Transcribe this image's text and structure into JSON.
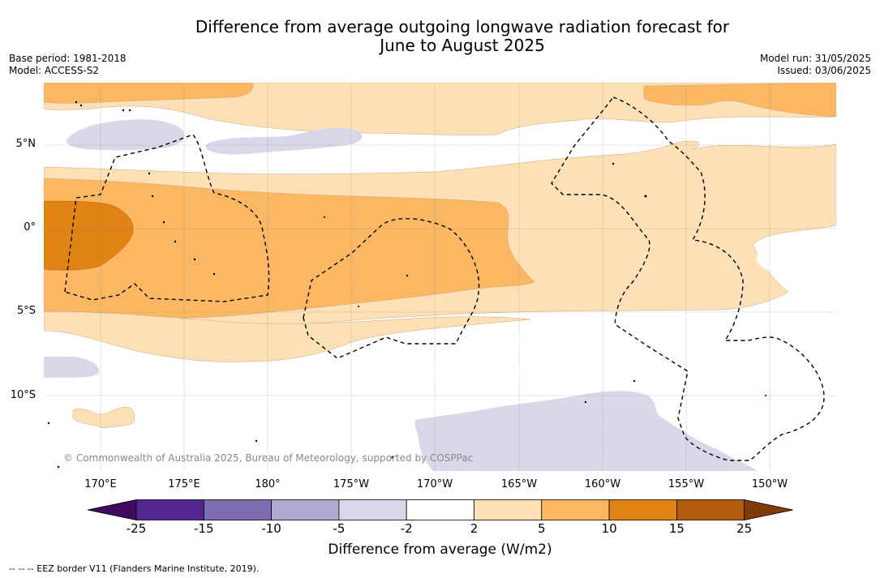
{
  "title": {
    "line1": "Difference from average outgoing longwave radiation forecast for",
    "line2": "June to August 2025"
  },
  "meta": {
    "base_period": "Base period: 1981-2018",
    "model": "Model: ACCESS-S2",
    "model_run": "Model run: 31/05/2025",
    "issued": "Issued: 03/06/2025"
  },
  "map": {
    "copyright": "© Commonwealth of Australia 2025, Bureau of Meteorology, supported by COSPPac",
    "lat_labels": [
      "5°N",
      "0°",
      "5°S",
      "10°S"
    ],
    "lon_labels": [
      "170°E",
      "175°E",
      "180°",
      "175°W",
      "170°W",
      "165°W",
      "160°W",
      "155°W",
      "150°W"
    ]
  },
  "colorbar": {
    "ticks": [
      "-25",
      "-15",
      "-10",
      "-5",
      "-2",
      "2",
      "5",
      "10",
      "15",
      "25"
    ],
    "colors": [
      "#3f0a5e",
      "#54278f",
      "#7d6db1",
      "#b0aad3",
      "#d8d8ea",
      "#ffffff",
      "#fde0b5",
      "#fbb762",
      "#e08214",
      "#b25d0e",
      "#7f3b08"
    ],
    "label": "Difference from average (W/m2)"
  },
  "legend_note": "--  --  -- EEZ border V11 (Flanders Marine Institute, 2019)."
}
